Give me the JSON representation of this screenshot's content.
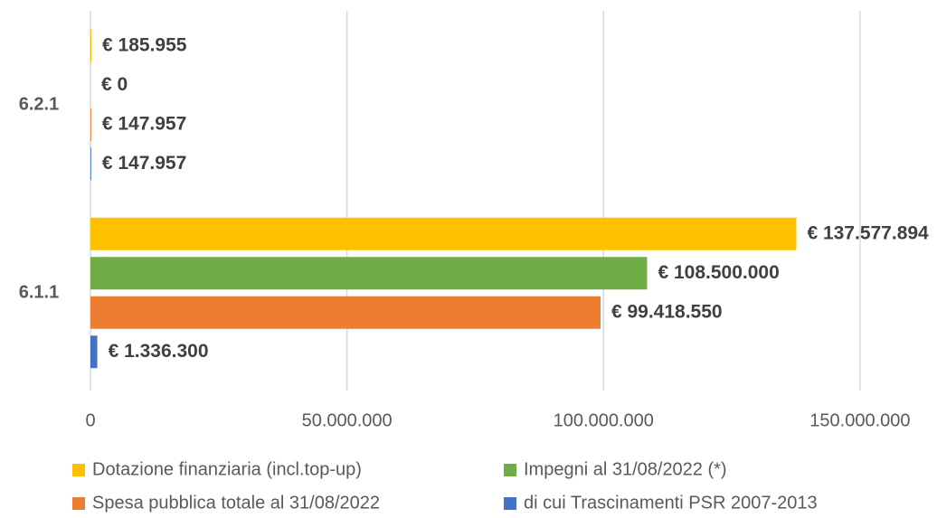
{
  "chart_data": {
    "type": "bar",
    "orientation": "horizontal",
    "categories": [
      "6.2.1",
      "6.1.1"
    ],
    "series": [
      {
        "name": "Dotazione finanziaria (incl.top-up)",
        "color": "#FFC000",
        "values": [
          185955,
          137577894
        ],
        "value_labels": [
          "€ 185.955",
          "€ 137.577.894"
        ]
      },
      {
        "name": "Impegni al 31/08/2022 (*)",
        "color": "#70AD47",
        "values": [
          0,
          108500000
        ],
        "value_labels": [
          "€ 0",
          "€ 108.500.000"
        ]
      },
      {
        "name": "Spesa pubblica totale al 31/08/2022",
        "color": "#ED7D31",
        "values": [
          147957,
          99418550
        ],
        "value_labels": [
          "€ 147.957",
          "€ 99.418.550"
        ]
      },
      {
        "name": "di cui Trascinamenti PSR 2007-2013",
        "color": "#4472C4",
        "values": [
          147957,
          1336300
        ],
        "value_labels": [
          "€ 147.957",
          "€ 1.336.300"
        ]
      }
    ],
    "xlim": [
      0,
      165000000
    ],
    "xticks": [
      0,
      {
        "value": 50000000,
        "label": "50.000.000"
      },
      {
        "value": 100000000,
        "label": "100.000.000"
      },
      {
        "value": 150000000,
        "label": "150.000.000"
      }
    ],
    "grid": true,
    "legend": "bottom"
  }
}
